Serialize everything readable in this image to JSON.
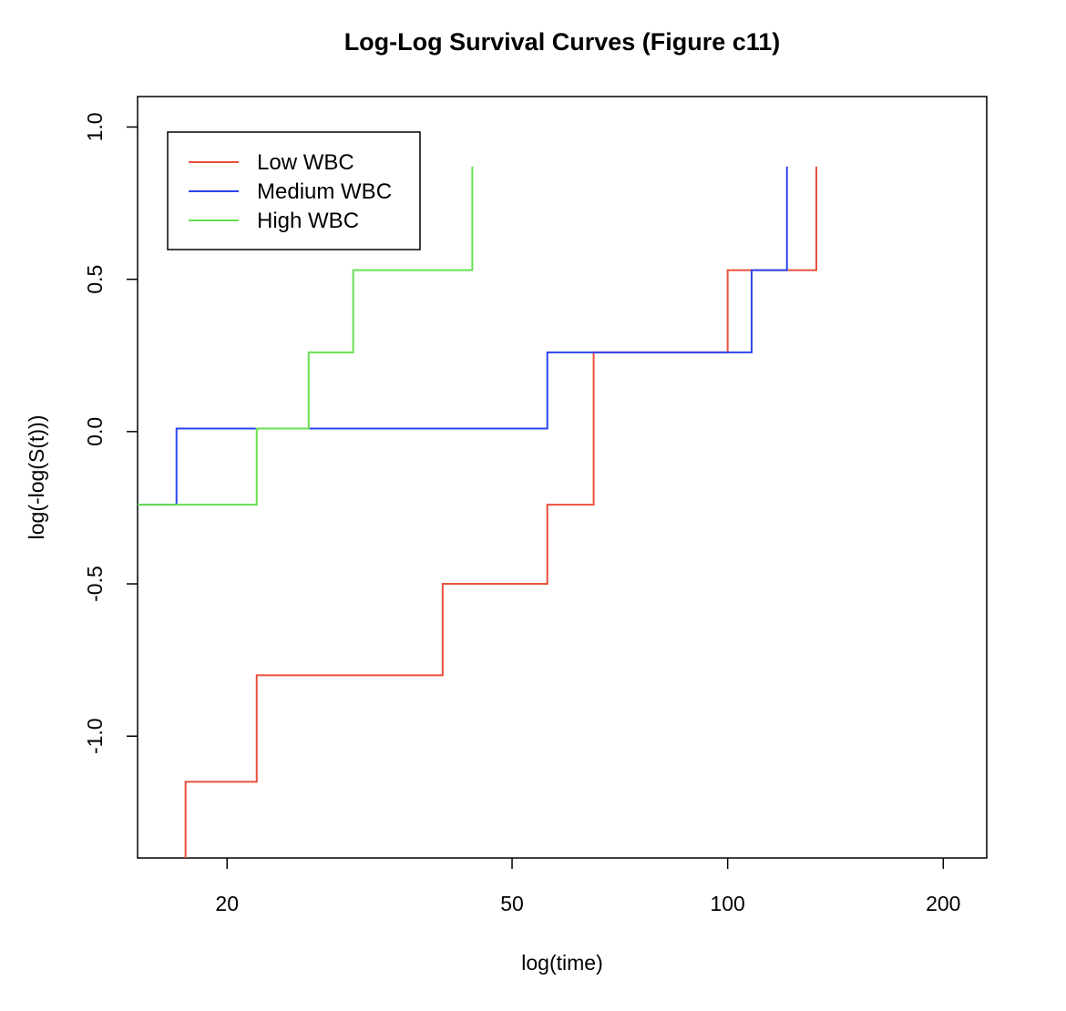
{
  "chart_data": {
    "type": "line",
    "step": true,
    "title": "Log-Log Survival Curves (Figure c11)",
    "xlabel": "log(time)",
    "ylabel": "log(-log(S(t)))",
    "x_scale": "log",
    "xlim": [
      15,
      230
    ],
    "ylim": [
      -1.4,
      1.1
    ],
    "x_ticks": [
      20,
      50,
      100,
      200
    ],
    "x_tick_labels": [
      "20",
      "50",
      "100",
      "200"
    ],
    "y_ticks": [
      -1.0,
      -0.5,
      0.0,
      0.5,
      1.0
    ],
    "y_tick_labels": [
      "-1.0",
      "-0.5",
      "0.0",
      "0.5",
      "1.0"
    ],
    "grid": false,
    "legend_position": "top-left",
    "series": [
      {
        "name": "Low WBC",
        "color": "#e8503c",
        "points": [
          [
            17.5,
            -1.4
          ],
          [
            17.5,
            -1.15
          ],
          [
            22,
            -1.15
          ],
          [
            22,
            -0.8
          ],
          [
            40,
            -0.8
          ],
          [
            40,
            -0.5
          ],
          [
            56,
            -0.5
          ],
          [
            56,
            -0.24
          ],
          [
            65,
            -0.24
          ],
          [
            65,
            0.26
          ],
          [
            100,
            0.26
          ],
          [
            100,
            0.53
          ],
          [
            133,
            0.53
          ],
          [
            133,
            0.87
          ]
        ]
      },
      {
        "name": "Medium WBC",
        "color": "#2c44ee",
        "points": [
          [
            15,
            -0.24
          ],
          [
            17,
            -0.24
          ],
          [
            17,
            0.01
          ],
          [
            56,
            0.01
          ],
          [
            56,
            0.26
          ],
          [
            108,
            0.26
          ],
          [
            108,
            0.53
          ],
          [
            121,
            0.53
          ],
          [
            121,
            0.87
          ]
        ]
      },
      {
        "name": "High WBC",
        "color": "#66e050",
        "points": [
          [
            15,
            -0.24
          ],
          [
            22,
            -0.24
          ],
          [
            22,
            0.01
          ],
          [
            26,
            0.01
          ],
          [
            26,
            0.26
          ],
          [
            30,
            0.26
          ],
          [
            30,
            0.53
          ],
          [
            44,
            0.53
          ],
          [
            44,
            0.87
          ]
        ]
      }
    ]
  }
}
